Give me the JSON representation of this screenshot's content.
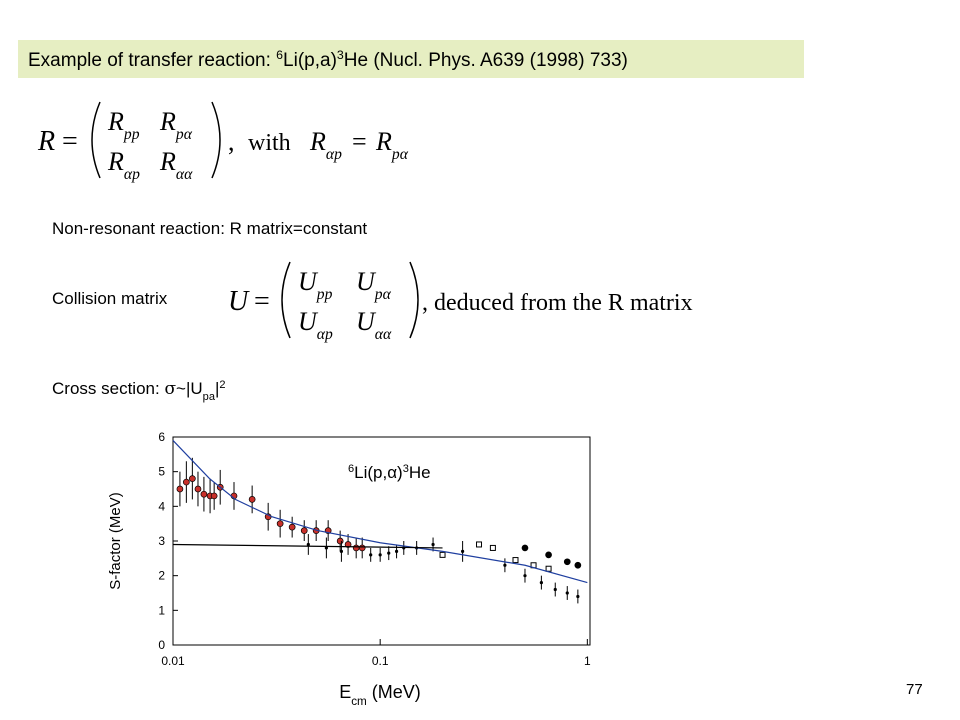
{
  "title": {
    "parts": [
      "Example of transfer reaction: ",
      "6",
      "Li(p,a)",
      "3",
      "He (Nucl. Phys. A639 (1998) 733)"
    ]
  },
  "r_matrix": {
    "lhs": "R",
    "eq": "=",
    "comma": ",",
    "with": "with",
    "entries": [
      [
        "R",
        "pp"
      ],
      [
        "R",
        "pα"
      ],
      [
        "R",
        "αp"
      ],
      [
        "R",
        "αα"
      ]
    ],
    "left": [
      "R",
      "αp"
    ],
    "right": [
      "R",
      "pα"
    ]
  },
  "non_resonant": "Non-resonant reaction: R matrix=constant",
  "collision": {
    "label": "Collision matrix",
    "lhs": "U",
    "eq": "=",
    "entries": [
      [
        "U",
        "pp"
      ],
      [
        "U",
        "pα"
      ],
      [
        "U",
        "αp"
      ],
      [
        "U",
        "αα"
      ]
    ],
    "tail": ", deduced from the R matrix"
  },
  "cross_section": {
    "parts": [
      "Cross section: ",
      "σ",
      "~|U",
      "pa",
      "|",
      "2"
    ]
  },
  "page_number": "77",
  "chart_data": {
    "type": "scatter",
    "y_label": "S-factor (MeV)",
    "x_label": {
      "parts": [
        "E",
        "cm",
        " (MeV)"
      ]
    },
    "annotation": {
      "parts": [
        "6",
        "Li(p,α)",
        "3",
        "He"
      ]
    },
    "log_x": true,
    "xlim": [
      0.01,
      1.03
    ],
    "xticks": [
      0.01,
      0.1,
      1
    ],
    "ylim": [
      0,
      6
    ],
    "yticks": [
      0,
      1,
      2,
      3,
      4,
      5,
      6
    ],
    "series": [
      {
        "marker": "circle",
        "color": "#c8302a",
        "x": [
          0.0108,
          0.0116,
          0.0124,
          0.0132,
          0.0141,
          0.0151,
          0.0158,
          0.0169,
          0.0197,
          0.0241,
          0.0288,
          0.0329,
          0.0376,
          0.043,
          0.0491,
          0.0561,
          0.0641,
          0.07,
          0.0766,
          0.0819
        ],
        "values": [
          4.5,
          4.7,
          4.8,
          4.5,
          4.35,
          4.3,
          4.3,
          4.55,
          4.3,
          4.2,
          3.7,
          3.5,
          3.4,
          3.3,
          3.3,
          3.3,
          3.0,
          2.9,
          2.8,
          2.8
        ],
        "errors": [
          0.5,
          0.6,
          0.6,
          0.5,
          0.5,
          0.5,
          0.4,
          0.5,
          0.4,
          0.4,
          0.4,
          0.4,
          0.3,
          0.3,
          0.3,
          0.3,
          0.3,
          0.3,
          0.3,
          0.3
        ]
      },
      {
        "marker": "dot",
        "color": "#000000",
        "x": [
          0.045,
          0.055,
          0.065,
          0.09,
          0.1,
          0.11,
          0.12,
          0.13,
          0.15,
          0.18,
          0.25,
          0.4,
          0.5,
          0.6,
          0.7,
          0.8,
          0.9
        ],
        "values": [
          2.9,
          2.8,
          2.7,
          2.6,
          2.6,
          2.65,
          2.7,
          2.8,
          2.8,
          2.9,
          2.7,
          2.3,
          2.0,
          1.8,
          1.6,
          1.5,
          1.4
        ],
        "errors": [
          0.3,
          0.3,
          0.3,
          0.2,
          0.2,
          0.2,
          0.2,
          0.2,
          0.2,
          0.2,
          0.3,
          0.2,
          0.2,
          0.2,
          0.2,
          0.2,
          0.2
        ]
      },
      {
        "marker": "circle",
        "color": "#000000",
        "x": [
          0.5,
          0.65,
          0.8,
          0.9
        ],
        "values": [
          2.8,
          2.6,
          2.4,
          2.3
        ]
      },
      {
        "marker": "square",
        "color": "#000000",
        "x": [
          0.2,
          0.3,
          0.35,
          0.45,
          0.55,
          0.65
        ],
        "values": [
          2.6,
          2.9,
          2.8,
          2.45,
          2.3,
          2.2
        ]
      },
      {
        "marker": "line",
        "color": "#1f3fa0",
        "x": [
          0.01,
          0.015,
          0.02,
          0.03,
          0.05,
          0.1,
          0.2,
          0.5,
          1
        ],
        "values": [
          5.9,
          4.8,
          4.2,
          3.7,
          3.3,
          2.95,
          2.7,
          2.3,
          1.8
        ]
      },
      {
        "marker": "line",
        "color": "#000000",
        "x": [
          0.01,
          0.2
        ],
        "values": [
          2.9,
          2.8
        ]
      }
    ]
  }
}
